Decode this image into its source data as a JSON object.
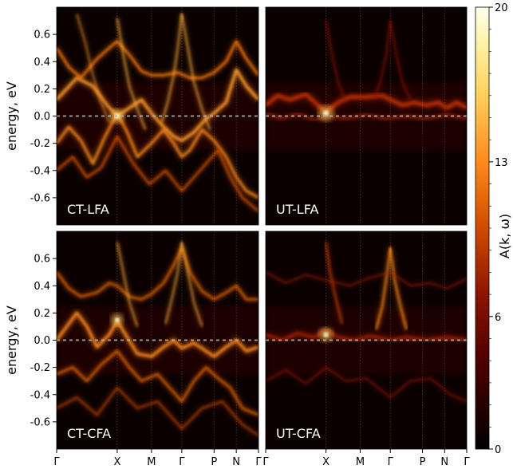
{
  "chart_data": {
    "type": "heatmap",
    "colorbar": {
      "label": "A(k, ω)",
      "min": 0,
      "max": 20,
      "ticks": [
        "0",
        "6",
        "13",
        "20"
      ],
      "colormap": "afmhot"
    },
    "x_ticks": [
      "Γ",
      "X",
      "M",
      "Γ",
      "P",
      "N",
      "Γ"
    ],
    "x_tick_positions": [
      0,
      0.3,
      0.47,
      0.62,
      0.78,
      0.89,
      1.0
    ],
    "ylabel": "energy, eV",
    "y_ticks": [
      "0.6",
      "0.4",
      "0.2",
      "0.0",
      "-0.2",
      "-0.4",
      "-0.6"
    ],
    "y_tick_values": [
      0.6,
      0.4,
      0.2,
      0.0,
      -0.2,
      -0.4,
      -0.6
    ],
    "ylim": [
      -0.8,
      0.8
    ],
    "fermi_level": 0.0,
    "panels": [
      {
        "label": "CT-LFA"
      },
      {
        "label": "UT-LFA"
      },
      {
        "label": "CT-CFA"
      },
      {
        "label": "UT-CFA"
      }
    ]
  }
}
